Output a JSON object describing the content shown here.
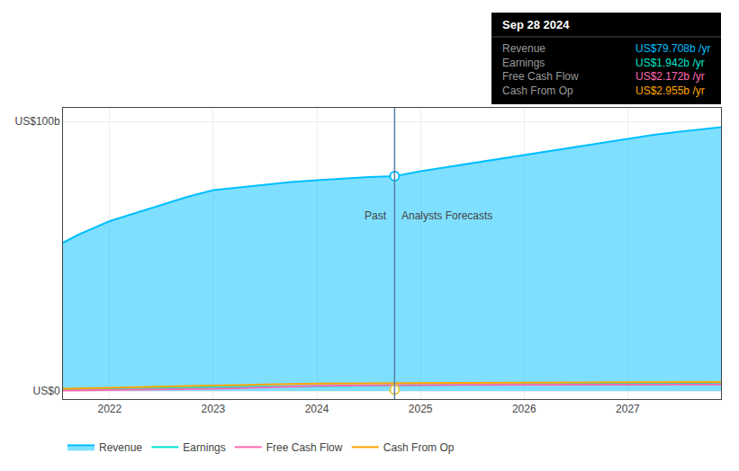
{
  "chart_data": {
    "type": "line",
    "xlim": [
      2021.55,
      2027.9
    ],
    "xticks": [
      2022,
      2023,
      2024,
      2025,
      2026,
      2027
    ],
    "ylim": [
      -3,
      105
    ],
    "yticks": [
      {
        "value": 0,
        "label": "US$0"
      },
      {
        "value": 100,
        "label": "US$100b"
      }
    ],
    "grid": true,
    "legend": "bottom",
    "series": [
      {
        "name": "Revenue",
        "type": "area",
        "color": "#00bfff",
        "x": [
          2021.55,
          2021.7,
          2022.0,
          2022.25,
          2022.5,
          2022.75,
          2023.0,
          2023.25,
          2023.5,
          2023.75,
          2024.0,
          2024.25,
          2024.5,
          2024.75,
          2024.75,
          2025.0,
          2025.25,
          2025.5,
          2025.75,
          2026.0,
          2026.25,
          2026.5,
          2026.75,
          2027.0,
          2027.25,
          2027.5,
          2027.75,
          2027.9
        ],
        "values": [
          55,
          58,
          63,
          66,
          69,
          72,
          74.5,
          75.5,
          76.5,
          77.5,
          78.2,
          78.8,
          79.3,
          79.7,
          79.7,
          81.5,
          83.0,
          84.5,
          86.0,
          87.5,
          89.0,
          90.5,
          92.0,
          93.5,
          95.0,
          96.2,
          97.2,
          97.8
        ]
      },
      {
        "name": "Earnings",
        "type": "line",
        "color": "#00e5cc",
        "x": [
          2021.55,
          2022.0,
          2022.5,
          2023.0,
          2023.5,
          2024.0,
          2024.75,
          2024.75,
          2025.0,
          2025.5,
          2026.0,
          2026.5,
          2027.0,
          2027.75,
          2027.9
        ],
        "values": [
          0.3,
          0.7,
          1.1,
          1.4,
          1.6,
          1.8,
          1.942,
          1.942,
          2.05,
          2.2,
          2.4,
          2.6,
          2.8,
          3.0,
          3.05
        ]
      },
      {
        "name": "Free Cash Flow",
        "type": "line",
        "color": "#ff69b4",
        "x": [
          2021.55,
          2022.0,
          2022.5,
          2023.0,
          2023.5,
          2024.0,
          2024.75,
          2024.75,
          2025.0,
          2025.5,
          2026.0,
          2026.5,
          2027.0,
          2027.75,
          2027.9
        ],
        "values": [
          0.2,
          0.4,
          0.6,
          0.8,
          1.3,
          1.9,
          2.172,
          2.172,
          2.2,
          2.22,
          2.25,
          2.28,
          2.32,
          2.38,
          2.4
        ]
      },
      {
        "name": "Cash From Op",
        "type": "line",
        "color": "#ffa500",
        "x": [
          2021.55,
          2022.0,
          2022.5,
          2023.0,
          2023.5,
          2024.0,
          2024.75,
          2024.75,
          2025.0,
          2025.5,
          2026.0,
          2026.5,
          2027.0,
          2027.75,
          2027.9
        ],
        "values": [
          0.8,
          1.2,
          1.7,
          2.1,
          2.4,
          2.75,
          2.955,
          2.955,
          3.0,
          3.05,
          3.1,
          3.15,
          3.22,
          3.3,
          3.35
        ]
      }
    ],
    "divider": {
      "x": 2024.75,
      "color": "#5a7fa8",
      "labels": [
        "Past",
        "Analysts Forecasts"
      ],
      "label_y": 68
    },
    "highlight_points": [
      {
        "x": 2024.75,
        "y": 79.7,
        "color": "#00bfff"
      },
      {
        "x": 2024.75,
        "y": 0.5,
        "color": "#e8c840"
      }
    ],
    "tooltip": {
      "title": "Sep 28 2024",
      "items": [
        {
          "label": "Revenue",
          "value": "US$79.708b /yr",
          "color": "#00bfff"
        },
        {
          "label": "Earnings",
          "value": "US$1.942b /yr",
          "color": "#00e5cc"
        },
        {
          "label": "Free Cash Flow",
          "value": "US$2.172b /yr",
          "color": "#ff69b4"
        },
        {
          "label": "Cash From Op",
          "value": "US$2.955b /yr",
          "color": "#ffa500"
        }
      ]
    }
  }
}
